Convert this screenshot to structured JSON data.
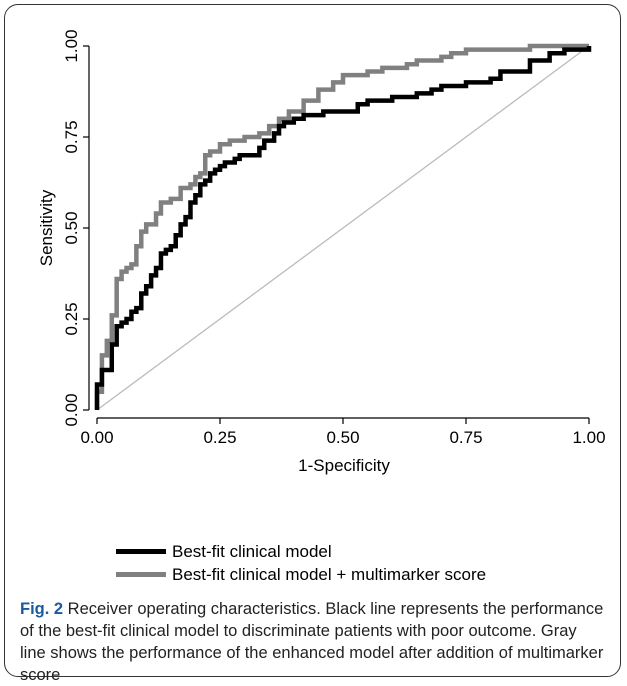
{
  "chart_data": {
    "type": "line",
    "xlabel": "1-Specificity",
    "ylabel": "Sensitivity",
    "xlim": [
      0,
      1
    ],
    "ylim": [
      0,
      1
    ],
    "x_ticks": [
      "0.00",
      "0.25",
      "0.50",
      "0.75",
      "1.00"
    ],
    "y_ticks": [
      "0.00",
      "0.25",
      "0.50",
      "0.75",
      "1.00"
    ],
    "grid": false,
    "legend_position": "bottom-left",
    "series": [
      {
        "name": "Best-fit clinical model",
        "color": "#000000",
        "x": [
          0,
          0,
          0.01,
          0.01,
          0.03,
          0.03,
          0.04,
          0.04,
          0.05,
          0.06,
          0.07,
          0.08,
          0.09,
          0.1,
          0.11,
          0.12,
          0.13,
          0.14,
          0.15,
          0.16,
          0.17,
          0.18,
          0.19,
          0.2,
          0.21,
          0.22,
          0.23,
          0.24,
          0.25,
          0.26,
          0.28,
          0.29,
          0.31,
          0.33,
          0.34,
          0.36,
          0.37,
          0.38,
          0.4,
          0.42,
          0.44,
          0.46,
          0.48,
          0.5,
          0.53,
          0.55,
          0.58,
          0.6,
          0.65,
          0.68,
          0.7,
          0.75,
          0.8,
          0.82,
          0.85,
          0.88,
          0.92,
          0.95,
          1.0
        ],
        "y": [
          0,
          0.07,
          0.08,
          0.11,
          0.12,
          0.18,
          0.2,
          0.23,
          0.24,
          0.25,
          0.27,
          0.28,
          0.32,
          0.34,
          0.37,
          0.39,
          0.43,
          0.44,
          0.45,
          0.48,
          0.51,
          0.53,
          0.57,
          0.59,
          0.62,
          0.63,
          0.65,
          0.66,
          0.67,
          0.68,
          0.69,
          0.7,
          0.7,
          0.72,
          0.74,
          0.76,
          0.78,
          0.79,
          0.8,
          0.81,
          0.81,
          0.82,
          0.82,
          0.82,
          0.84,
          0.85,
          0.85,
          0.86,
          0.87,
          0.88,
          0.89,
          0.9,
          0.91,
          0.93,
          0.93,
          0.96,
          0.98,
          0.99,
          1.0
        ]
      },
      {
        "name": "Best-fit clinical model + multimarker score",
        "color": "#808080",
        "x": [
          0,
          0,
          0.01,
          0.01,
          0.02,
          0.02,
          0.03,
          0.03,
          0.04,
          0.04,
          0.05,
          0.06,
          0.07,
          0.08,
          0.09,
          0.1,
          0.12,
          0.13,
          0.15,
          0.17,
          0.19,
          0.2,
          0.21,
          0.22,
          0.23,
          0.25,
          0.27,
          0.3,
          0.33,
          0.35,
          0.37,
          0.39,
          0.42,
          0.45,
          0.48,
          0.5,
          0.55,
          0.58,
          0.63,
          0.65,
          0.7,
          0.72,
          0.75,
          0.8,
          0.85,
          0.88,
          0.92,
          1.0
        ],
        "y": [
          0,
          0.05,
          0.06,
          0.15,
          0.17,
          0.19,
          0.2,
          0.26,
          0.27,
          0.36,
          0.38,
          0.39,
          0.4,
          0.45,
          0.49,
          0.51,
          0.54,
          0.57,
          0.58,
          0.61,
          0.62,
          0.64,
          0.65,
          0.7,
          0.71,
          0.73,
          0.74,
          0.75,
          0.76,
          0.78,
          0.8,
          0.82,
          0.85,
          0.88,
          0.9,
          0.92,
          0.93,
          0.94,
          0.95,
          0.96,
          0.97,
          0.98,
          0.99,
          0.99,
          0.99,
          1.0,
          1.0,
          1.0
        ]
      },
      {
        "name": "",
        "color": "#bbbbbb",
        "x": [
          0,
          1
        ],
        "y": [
          0,
          1
        ]
      }
    ]
  },
  "legend": {
    "items": [
      {
        "label": "Best-fit clinical model",
        "color": "#000000"
      },
      {
        "label": "Best-fit clinical model + multimarker score",
        "color": "#808080"
      }
    ]
  },
  "caption": {
    "lead": "Fig. 2",
    "text": " Receiver operating characteristics. Black line represents the performance of the best-fit clinical model to discriminate patients with poor outcome. Gray line shows the performance of the enhanced model after addition of multimarker score"
  }
}
